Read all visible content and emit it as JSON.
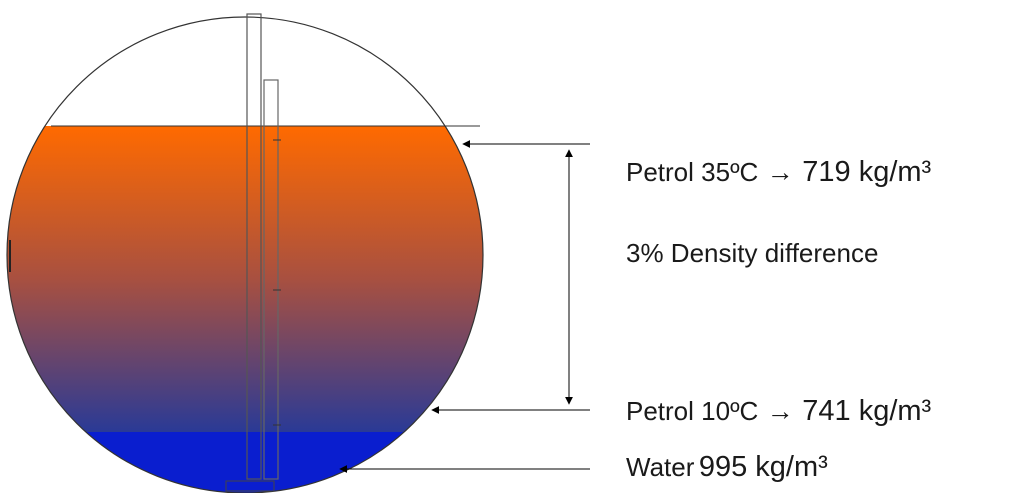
{
  "colors": {
    "petrol_top": "#ff6a00",
    "petrol_mid": "#a85040",
    "petrol_bottom": "#2a3a96",
    "water": "#0a1ecf",
    "outline": "#333333"
  },
  "labels": {
    "petrol_35": {
      "name": "Petrol 35ºC",
      "arrow": "→",
      "density": "719 kg/m³"
    },
    "density_difference": "3% Density difference",
    "petrol_10": {
      "name": "Petrol 10ºC",
      "arrow": "→",
      "density": "741 kg/m³"
    },
    "water": {
      "name": "Water",
      "density": "995 kg/m³"
    }
  }
}
